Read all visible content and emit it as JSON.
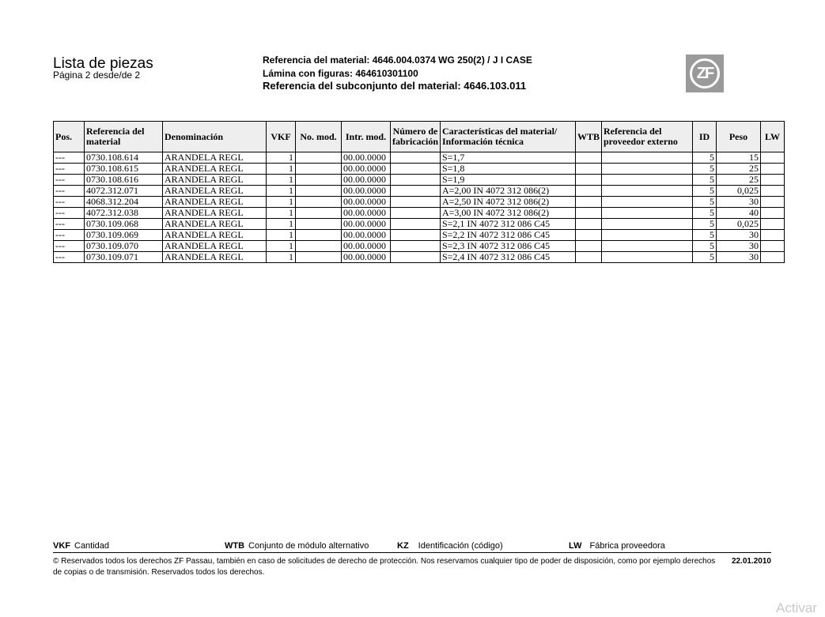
{
  "header": {
    "title": "Lista de piezas",
    "page": "Página 2 desde/de 2",
    "material_ref": "Referencia del material: 4646.004.0374 WG 250(2) / J I CASE",
    "figure_sheet": "Lámina con figuras: 464610301100",
    "subassembly_ref": "Referencia del subconjunto del material: 4646.103.011",
    "logo": "ZF"
  },
  "table": {
    "columns": [
      "Pos.",
      "Referencia del material",
      "Denominación",
      "VKF",
      "No. mod.",
      "Intr. mod.",
      "Número de fabricación",
      "Características del material/ Información técnica",
      "WTB",
      "Referencia del proveedor externo",
      "ID",
      "Peso",
      "LW"
    ],
    "rows": [
      [
        "---",
        "0730.108.614",
        "ARANDELA REGL",
        "1",
        "",
        "00.00.0000",
        "",
        "S=1,7",
        "",
        "",
        "5",
        "15",
        ""
      ],
      [
        "---",
        "0730.108.615",
        "ARANDELA REGL",
        "1",
        "",
        "00.00.0000",
        "",
        "S=1,8",
        "",
        "",
        "5",
        "25",
        ""
      ],
      [
        "---",
        "0730.108.616",
        "ARANDELA REGL",
        "1",
        "",
        "00.00.0000",
        "",
        "S=1,9",
        "",
        "",
        "5",
        "25",
        ""
      ],
      [
        "---",
        "4072.312.071",
        "ARANDELA REGL",
        "1",
        "",
        "00.00.0000",
        "",
        "A=2,00 IN 4072 312 086(2)",
        "",
        "",
        "5",
        "0,025",
        ""
      ],
      [
        "---",
        "4068.312.204",
        "ARANDELA REGL",
        "1",
        "",
        "00.00.0000",
        "",
        "A=2,50 IN 4072 312 086(2)",
        "",
        "",
        "5",
        "30",
        ""
      ],
      [
        "---",
        "4072.312.038",
        "ARANDELA REGL",
        "1",
        "",
        "00.00.0000",
        "",
        "A=3,00 IN 4072 312 086(2)",
        "",
        "",
        "5",
        "40",
        ""
      ],
      [
        "---",
        "0730.109.068",
        "ARANDELA REGL",
        "1",
        "",
        "00.00.0000",
        "",
        "S=2,1 IN 4072 312 086 C45",
        "",
        "",
        "5",
        "0,025",
        ""
      ],
      [
        "---",
        "0730.109.069",
        "ARANDELA REGL",
        "1",
        "",
        "00.00.0000",
        "",
        "S=2,2 IN 4072 312 086 C45",
        "",
        "",
        "5",
        "30",
        ""
      ],
      [
        "---",
        "0730.109.070",
        "ARANDELA REGL",
        "1",
        "",
        "00.00.0000",
        "",
        "S=2,3 IN 4072 312 086 C45",
        "",
        "",
        "5",
        "30",
        ""
      ],
      [
        "---",
        "0730.109.071",
        "ARANDELA REGL",
        "1",
        "",
        "00.00.0000",
        "",
        "S=2,4 IN 4072 312 086 C45",
        "",
        "",
        "5",
        "30",
        ""
      ]
    ]
  },
  "legend": [
    {
      "k": "VKF",
      "v": "Cantidad"
    },
    {
      "k": "WTB",
      "v": "Conjunto de módulo alternativo"
    },
    {
      "k": "KZ",
      "v": "Identificación (código)"
    },
    {
      "k": "LW",
      "v": "Fábrica proveedora"
    }
  ],
  "footer": {
    "copyright": "© Reservados todos los derechos ZF Passau, también en caso de solicitudes de derecho de protección. Nos reservamos cualquier tipo de poder de disposición, como por ejemplo derechos de copias o de transmisión. Reservados todos los derechos.",
    "date": "22.01.2010"
  },
  "watermark": "Activar"
}
